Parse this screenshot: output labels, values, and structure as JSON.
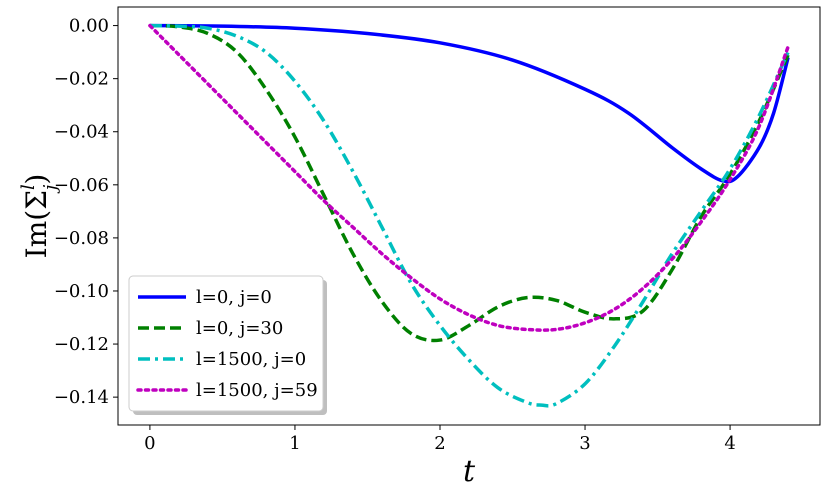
{
  "chart_data": {
    "type": "line",
    "xlabel": "t",
    "ylabel": "Im(Σ",
    "ylabel_sup": "l",
    "ylabel_sub": "j",
    "ylabel_close": ")",
    "xlim": [
      -0.22,
      4.62
    ],
    "ylim": [
      -0.1505,
      0.007
    ],
    "xticks": [
      0,
      1,
      2,
      3,
      4
    ],
    "xtick_labels": [
      "0",
      "1",
      "2",
      "3",
      "4"
    ],
    "yticks": [
      0.0,
      -0.02,
      -0.04,
      -0.06,
      -0.08,
      -0.1,
      -0.12,
      -0.14
    ],
    "ytick_labels": [
      "0.00",
      "−0.02",
      "−0.04",
      "−0.06",
      "−0.08",
      "−0.10",
      "−0.12",
      "−0.14"
    ],
    "grid": false,
    "legend_position": "lower-left",
    "series": [
      {
        "name": "l=0, j=0",
        "color": "#0000ff",
        "style": "solid",
        "x": [
          0,
          0.5,
          1.0,
          1.5,
          2.0,
          2.5,
          3.0,
          3.3,
          3.6,
          3.8,
          3.95,
          4.05,
          4.2,
          4.3,
          4.4
        ],
        "y": [
          0,
          -0.0002,
          -0.001,
          -0.003,
          -0.0065,
          -0.013,
          -0.024,
          -0.033,
          -0.046,
          -0.054,
          -0.0585,
          -0.057,
          -0.046,
          -0.033,
          -0.012
        ]
      },
      {
        "name": "l=0, j=30",
        "color": "#008000",
        "style": "dashed",
        "x": [
          0,
          0.2,
          0.4,
          0.6,
          0.8,
          1.0,
          1.2,
          1.4,
          1.6,
          1.8,
          2.0,
          2.2,
          2.4,
          2.6,
          2.8,
          3.0,
          3.2,
          3.4,
          3.6,
          3.8,
          4.0,
          4.2,
          4.4
        ],
        "y": [
          0,
          -0.0005,
          -0.003,
          -0.01,
          -0.024,
          -0.042,
          -0.064,
          -0.086,
          -0.104,
          -0.116,
          -0.1185,
          -0.113,
          -0.106,
          -0.1025,
          -0.1035,
          -0.108,
          -0.1105,
          -0.1075,
          -0.092,
          -0.072,
          -0.056,
          -0.036,
          -0.011
        ]
      },
      {
        "name": "l=1500, j=0",
        "color": "#00bfbf",
        "style": "dashdot",
        "x": [
          0,
          0.2,
          0.4,
          0.6,
          0.8,
          1.0,
          1.2,
          1.4,
          1.6,
          1.8,
          2.0,
          2.2,
          2.4,
          2.6,
          2.7,
          2.8,
          3.0,
          3.2,
          3.4,
          3.6,
          3.8,
          4.0,
          4.2,
          4.4
        ],
        "y": [
          0,
          -0.0002,
          -0.001,
          -0.004,
          -0.01,
          -0.021,
          -0.036,
          -0.055,
          -0.076,
          -0.097,
          -0.113,
          -0.126,
          -0.1365,
          -0.142,
          -0.143,
          -0.1425,
          -0.135,
          -0.121,
          -0.104,
          -0.086,
          -0.07,
          -0.054,
          -0.034,
          -0.01
        ]
      },
      {
        "name": "l=1500, j=59",
        "color": "#bf00bf",
        "style": "dotted",
        "x": [
          0,
          0.2,
          0.4,
          0.6,
          0.8,
          1.0,
          1.2,
          1.4,
          1.6,
          1.8,
          2.0,
          2.2,
          2.4,
          2.6,
          2.8,
          3.0,
          3.2,
          3.4,
          3.6,
          3.8,
          4.0,
          4.2,
          4.4
        ],
        "y": [
          0,
          -0.011,
          -0.022,
          -0.033,
          -0.044,
          -0.055,
          -0.066,
          -0.076,
          -0.086,
          -0.095,
          -0.103,
          -0.109,
          -0.113,
          -0.1145,
          -0.1145,
          -0.112,
          -0.107,
          -0.099,
          -0.088,
          -0.074,
          -0.058,
          -0.038,
          -0.008
        ]
      }
    ]
  }
}
